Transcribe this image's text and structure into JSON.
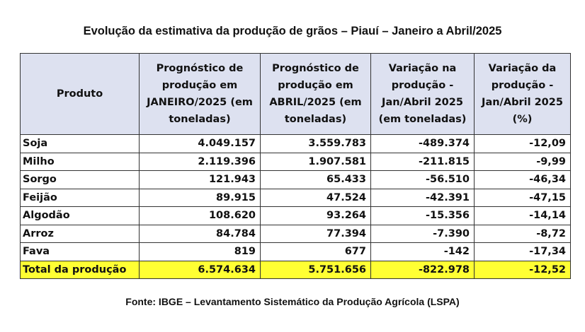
{
  "title": "Evolução da estimativa da produção de grãos – Piauí – Janeiro a Abril/2025",
  "headers": [
    "Produto",
    "Prognóstico de produção em JANEIRO/2025 (em toneladas)",
    "Prognóstico de produção em ABRIL/2025 (em toneladas)",
    "Variação na produção - Jan/Abril 2025 (em toneladas)",
    "Variação da produção - Jan/Abril 2025 (%)"
  ],
  "rows": [
    [
      "Soja",
      "4.049.157",
      "3.559.783",
      "-489.374",
      "-12,09"
    ],
    [
      "Milho",
      "2.119.396",
      "1.907.581",
      "-211.815",
      "-9,99"
    ],
    [
      "Sorgo",
      "121.943",
      "65.433",
      "-56.510",
      "-46,34"
    ],
    [
      "Feijão",
      "89.915",
      "47.524",
      "-42.391",
      "-47,15"
    ],
    [
      "Algodão",
      "108.620",
      "93.264",
      "-15.356",
      "-14,14"
    ],
    [
      "Arroz",
      "84.784",
      "77.394",
      "-7.390",
      "-8,72"
    ],
    [
      "Fava",
      "819",
      "677",
      "-142",
      "-17,34"
    ]
  ],
  "total": [
    "Total da produção",
    "6.574.634",
    "5.751.656",
    "-822.978",
    "-12,52"
  ],
  "colors": {
    "header_bg": "#dde1f0",
    "total_bg": "#ffff33"
  },
  "source": "Fonte: IBGE – Levantamento Sistemático da Produção Agrícola (LSPA)"
}
